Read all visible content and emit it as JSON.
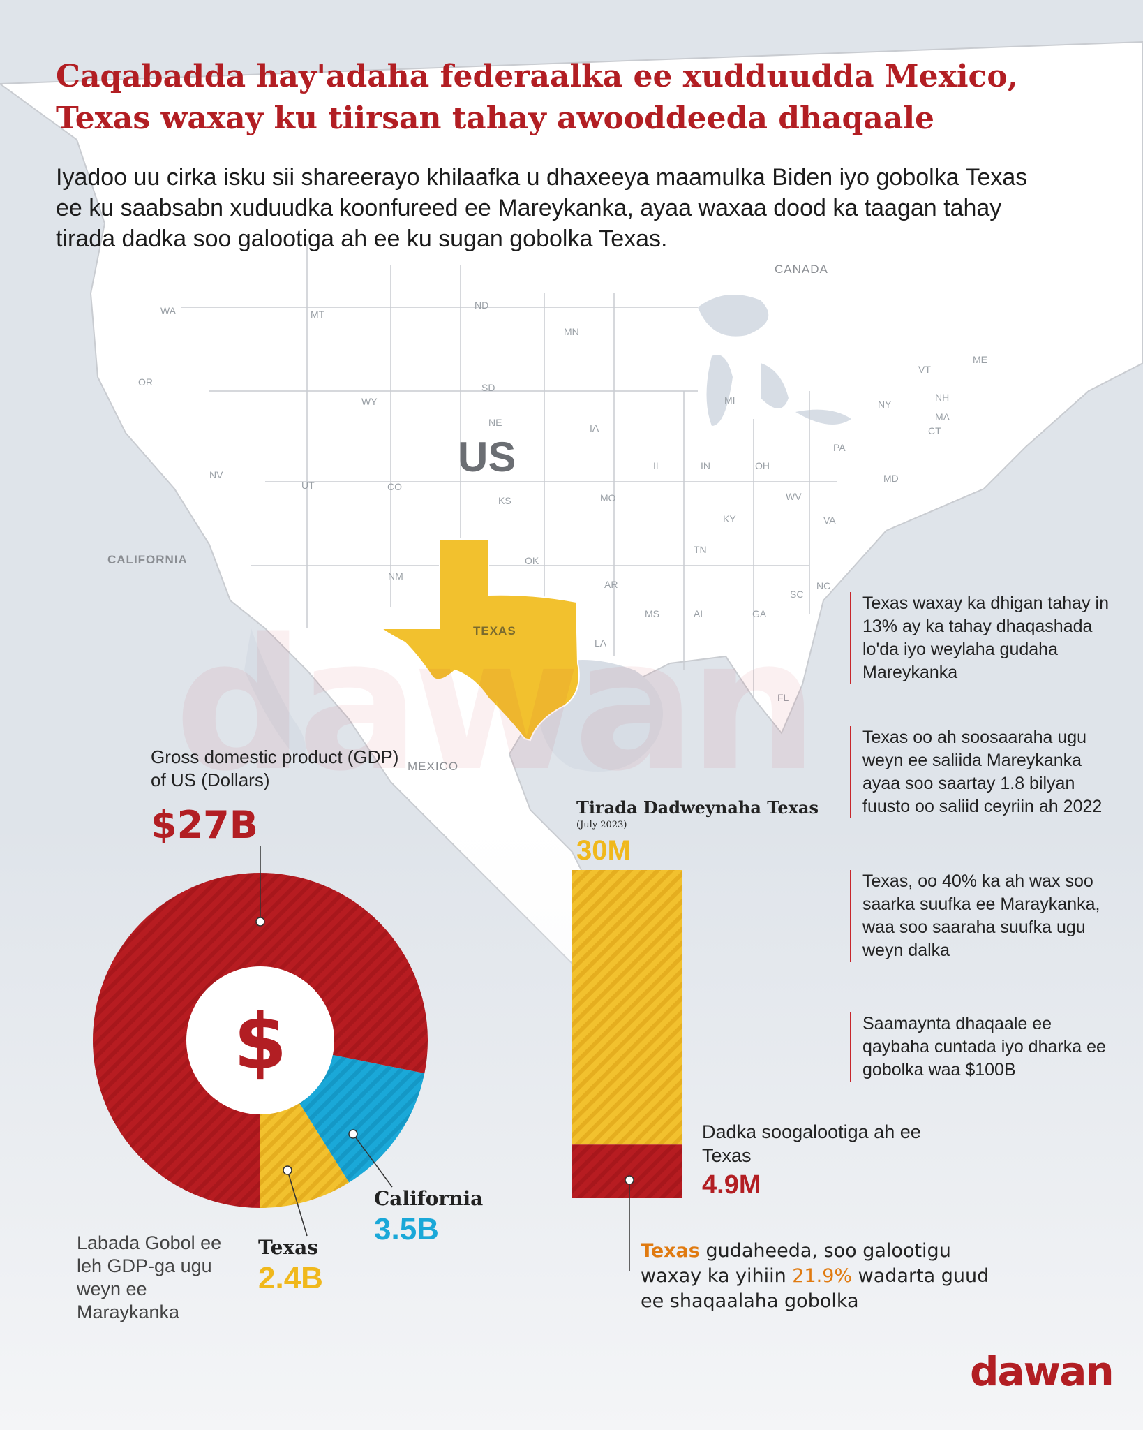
{
  "header": {
    "title": "Caqabadda hay'adaha federaalka ee xudduudda Mexico, Texas waxay ku tiirsan tahay awooddeeda dhaqaale",
    "subtitle": "Iyadoo uu cirka isku sii shareerayo khilaafka u dhaxeeya maamulka Biden iyo gobolka Texas ee ku saabsabn xuduudka koonfureed ee Mareykanka, ayaa waxaa dood ka taagan tahay tirada dadka soo galootiga ah ee ku sugan gobolka Texas."
  },
  "map": {
    "country_label": "US",
    "canada_label": "CANADA",
    "mexico_label": "MEXICO",
    "california_label": "CALIFORNIA",
    "texas_label": "TEXAS",
    "state_abbrs": [
      "WA",
      "MT",
      "ND",
      "MN",
      "OR",
      "WY",
      "SD",
      "NE",
      "IA",
      "NV",
      "UT",
      "CO",
      "KS",
      "MO",
      "IL",
      "IN",
      "OH",
      "KY",
      "WV",
      "VA",
      "TN",
      "OK",
      "NM",
      "AR",
      "NC",
      "SC",
      "MS",
      "AL",
      "GA",
      "LA",
      "FL",
      "MI",
      "NY",
      "PA",
      "VT",
      "NH",
      "ME",
      "MA",
      "CT",
      "MD"
    ],
    "colors": {
      "texas": "#f2c12e",
      "land": "#ffffff",
      "water": "#d7dde5",
      "border": "#c9ccd1"
    }
  },
  "notes": [
    "Texas waxay ka dhigan tahay in 13% ay ka tahay dhaqashada lo'da iyo weylaha gudaha Mareykanka",
    "Texas oo ah soosaaraha ugu weyn ee saliida Mareykanka ayaa soo saartay 1.8 bilyan fuusto oo saliid ceyriin ah 2022",
    "Texas, oo 40% ka ah wax soo saarka suufka ee Maraykanka, waa soo saaraha suufka ugu weyn dalka",
    "Saamaynta dhaqaale ee qaybaha cuntada iyo dharka ee gobolka waa $100B"
  ],
  "gdp": {
    "label": "Gross domestic product (GDP) of US (Dollars)",
    "total": "$27B",
    "center_symbol": "$",
    "caption": "Labada Gobol ee leh GDP-ga ugu weyn ee Maraykanka",
    "texas_name": "Texas",
    "texas_value": "2.4B",
    "california_name": "California",
    "california_value": "3.5B"
  },
  "population": {
    "title": "Tirada Dadweynaha Texas",
    "subtitle": "(July 2023)",
    "total": "30M",
    "immigrants_label": "Dadka soogalootiga ah ee Texas",
    "immigrants_value": "4.9M",
    "footnote": {
      "part1": "Texas",
      "part2": " gudaheeda, soo galootigu waxay ka yihiin ",
      "part3": "21.9%",
      "part4": " wadarta guud ee shaqaalaha gobolka"
    }
  },
  "chart_data": [
    {
      "type": "pie",
      "title": "Gross domestic product (GDP) of US (Dollars)",
      "labels": [
        "",
        "Texas",
        "California"
      ],
      "values": [
        21.1,
        2.4,
        3.5
      ],
      "total": 27,
      "colors": [
        "#b71c21",
        "#f2c12e",
        "#1aa8d8"
      ]
    },
    {
      "type": "bar",
      "title": "Tirada Dadweynaha Texas",
      "categories": [
        "Tirada Dadweynaha Texas"
      ],
      "series": [
        {
          "name": "Dadka soogalootiga ah ee Texas",
          "values": [
            4.9
          ]
        }
      ],
      "total": 30,
      "colors": [
        "#b71c21",
        "#f2c12e"
      ]
    }
  ],
  "brand": {
    "logo": "dawan",
    "watermark": "dawan"
  }
}
